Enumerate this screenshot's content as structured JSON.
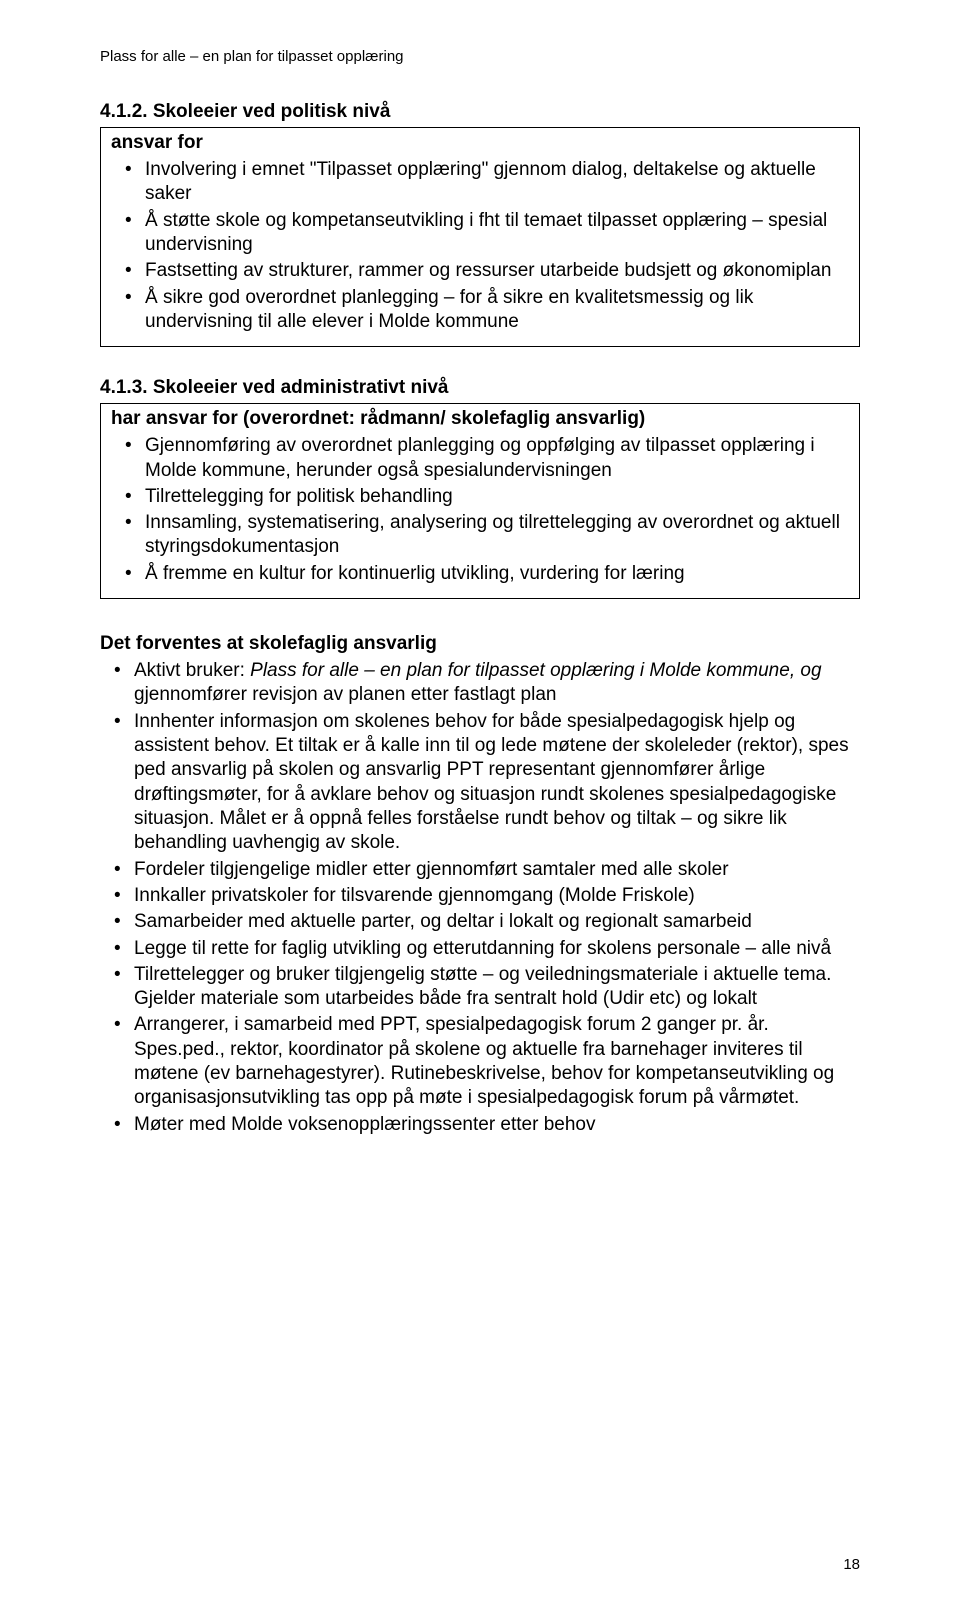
{
  "runningHeader": "Plass for alle – en plan for tilpasset opplæring",
  "section412": {
    "heading": "4.1.2. Skoleeier ved politisk nivå",
    "boxTitle": "ansvar for",
    "items": [
      "Involvering i emnet \"Tilpasset opplæring\" gjennom dialog, deltakelse og aktuelle saker",
      "Å støtte skole og kompetanseutvikling i fht til temaet tilpasset opplæring – spesial undervisning",
      "Fastsetting av strukturer, rammer og ressurser utarbeide budsjett og økonomiplan",
      "Å sikre god overordnet planlegging – for å sikre en kvalitetsmessig og lik undervisning til alle elever i Molde kommune"
    ]
  },
  "section413": {
    "heading": "4.1.3. Skoleeier ved administrativt nivå",
    "boxTitle": "har ansvar for (overordnet: rådmann/ skolefaglig ansvarlig)",
    "items": [
      "Gjennomføring av overordnet planlegging og oppfølging av tilpasset opplæring i Molde kommune, herunder også spesialundervisningen",
      "Tilrettelegging for politisk behandling",
      "Innsamling, systematisering, analysering og tilrettelegging av overordnet og aktuell styringsdokumentasjon",
      "Å fremme en kultur for kontinuerlig utvikling, vurdering for læring"
    ]
  },
  "expectations": {
    "heading": "Det forventes at skolefaglig ansvarlig",
    "item1": {
      "prefix": "Aktivt bruker: ",
      "italic": "Plass for alle – en plan for tilpasset opplæring i Molde kommune, og ",
      "suffix": "gjennomfører revisjon av planen etter fastlagt plan"
    },
    "items": [
      "Innhenter informasjon om skolenes behov for både spesialpedagogisk hjelp og assistent behov. Et tiltak er å kalle inn til og lede møtene der skoleleder (rektor), spes ped ansvarlig på skolen og ansvarlig PPT representant gjennomfører årlige drøftingsmøter, for å avklare behov og situasjon rundt skolenes spesialpedagogiske situasjon. Målet er å oppnå felles forståelse rundt behov og tiltak – og sikre lik behandling uavhengig av skole.",
      "Fordeler tilgjengelige midler etter gjennomført samtaler med alle skoler",
      "Innkaller privatskoler for tilsvarende gjennomgang (Molde Friskole)",
      "Samarbeider med aktuelle parter, og deltar i lokalt og regionalt samarbeid",
      "Legge til rette for faglig utvikling og etterutdanning for skolens personale – alle nivå",
      "Tilrettelegger og bruker tilgjengelig støtte – og veiledningsmateriale i aktuelle tema. Gjelder materiale som utarbeides både fra sentralt hold (Udir etc) og lokalt",
      "Arrangerer, i samarbeid med PPT, spesialpedagogisk forum 2 ganger pr. år. Spes.ped., rektor, koordinator på skolene og aktuelle fra barnehager inviteres til møtene (ev barnehagestyrer). Rutinebeskrivelse, behov for kompetanseutvikling og organisasjonsutvikling tas opp på møte i spesialpedagogisk forum på vårmøtet.",
      "Møter med Molde voksenopplæringssenter etter behov"
    ]
  },
  "pageNumber": "18"
}
